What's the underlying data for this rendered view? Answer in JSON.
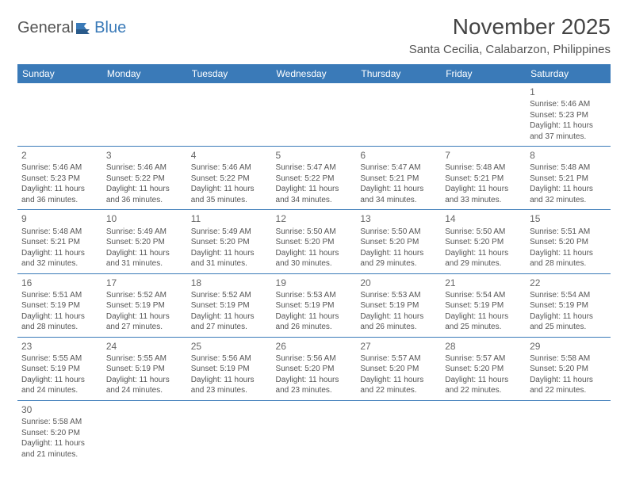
{
  "logo": {
    "text1": "General",
    "text2": "Blue"
  },
  "title": "November 2025",
  "location": "Santa Cecilia, Calabarzon, Philippines",
  "colors": {
    "header_bg": "#3a7ab8",
    "header_text": "#ffffff",
    "border": "#3a7ab8",
    "body_text": "#555555",
    "title_text": "#444444",
    "background": "#ffffff"
  },
  "weekdays": [
    "Sunday",
    "Monday",
    "Tuesday",
    "Wednesday",
    "Thursday",
    "Friday",
    "Saturday"
  ],
  "weeks": [
    [
      null,
      null,
      null,
      null,
      null,
      null,
      {
        "day": "1",
        "sunrise": "Sunrise: 5:46 AM",
        "sunset": "Sunset: 5:23 PM",
        "daylight": "Daylight: 11 hours and 37 minutes."
      }
    ],
    [
      {
        "day": "2",
        "sunrise": "Sunrise: 5:46 AM",
        "sunset": "Sunset: 5:23 PM",
        "daylight": "Daylight: 11 hours and 36 minutes."
      },
      {
        "day": "3",
        "sunrise": "Sunrise: 5:46 AM",
        "sunset": "Sunset: 5:22 PM",
        "daylight": "Daylight: 11 hours and 36 minutes."
      },
      {
        "day": "4",
        "sunrise": "Sunrise: 5:46 AM",
        "sunset": "Sunset: 5:22 PM",
        "daylight": "Daylight: 11 hours and 35 minutes."
      },
      {
        "day": "5",
        "sunrise": "Sunrise: 5:47 AM",
        "sunset": "Sunset: 5:22 PM",
        "daylight": "Daylight: 11 hours and 34 minutes."
      },
      {
        "day": "6",
        "sunrise": "Sunrise: 5:47 AM",
        "sunset": "Sunset: 5:21 PM",
        "daylight": "Daylight: 11 hours and 34 minutes."
      },
      {
        "day": "7",
        "sunrise": "Sunrise: 5:48 AM",
        "sunset": "Sunset: 5:21 PM",
        "daylight": "Daylight: 11 hours and 33 minutes."
      },
      {
        "day": "8",
        "sunrise": "Sunrise: 5:48 AM",
        "sunset": "Sunset: 5:21 PM",
        "daylight": "Daylight: 11 hours and 32 minutes."
      }
    ],
    [
      {
        "day": "9",
        "sunrise": "Sunrise: 5:48 AM",
        "sunset": "Sunset: 5:21 PM",
        "daylight": "Daylight: 11 hours and 32 minutes."
      },
      {
        "day": "10",
        "sunrise": "Sunrise: 5:49 AM",
        "sunset": "Sunset: 5:20 PM",
        "daylight": "Daylight: 11 hours and 31 minutes."
      },
      {
        "day": "11",
        "sunrise": "Sunrise: 5:49 AM",
        "sunset": "Sunset: 5:20 PM",
        "daylight": "Daylight: 11 hours and 31 minutes."
      },
      {
        "day": "12",
        "sunrise": "Sunrise: 5:50 AM",
        "sunset": "Sunset: 5:20 PM",
        "daylight": "Daylight: 11 hours and 30 minutes."
      },
      {
        "day": "13",
        "sunrise": "Sunrise: 5:50 AM",
        "sunset": "Sunset: 5:20 PM",
        "daylight": "Daylight: 11 hours and 29 minutes."
      },
      {
        "day": "14",
        "sunrise": "Sunrise: 5:50 AM",
        "sunset": "Sunset: 5:20 PM",
        "daylight": "Daylight: 11 hours and 29 minutes."
      },
      {
        "day": "15",
        "sunrise": "Sunrise: 5:51 AM",
        "sunset": "Sunset: 5:20 PM",
        "daylight": "Daylight: 11 hours and 28 minutes."
      }
    ],
    [
      {
        "day": "16",
        "sunrise": "Sunrise: 5:51 AM",
        "sunset": "Sunset: 5:19 PM",
        "daylight": "Daylight: 11 hours and 28 minutes."
      },
      {
        "day": "17",
        "sunrise": "Sunrise: 5:52 AM",
        "sunset": "Sunset: 5:19 PM",
        "daylight": "Daylight: 11 hours and 27 minutes."
      },
      {
        "day": "18",
        "sunrise": "Sunrise: 5:52 AM",
        "sunset": "Sunset: 5:19 PM",
        "daylight": "Daylight: 11 hours and 27 minutes."
      },
      {
        "day": "19",
        "sunrise": "Sunrise: 5:53 AM",
        "sunset": "Sunset: 5:19 PM",
        "daylight": "Daylight: 11 hours and 26 minutes."
      },
      {
        "day": "20",
        "sunrise": "Sunrise: 5:53 AM",
        "sunset": "Sunset: 5:19 PM",
        "daylight": "Daylight: 11 hours and 26 minutes."
      },
      {
        "day": "21",
        "sunrise": "Sunrise: 5:54 AM",
        "sunset": "Sunset: 5:19 PM",
        "daylight": "Daylight: 11 hours and 25 minutes."
      },
      {
        "day": "22",
        "sunrise": "Sunrise: 5:54 AM",
        "sunset": "Sunset: 5:19 PM",
        "daylight": "Daylight: 11 hours and 25 minutes."
      }
    ],
    [
      {
        "day": "23",
        "sunrise": "Sunrise: 5:55 AM",
        "sunset": "Sunset: 5:19 PM",
        "daylight": "Daylight: 11 hours and 24 minutes."
      },
      {
        "day": "24",
        "sunrise": "Sunrise: 5:55 AM",
        "sunset": "Sunset: 5:19 PM",
        "daylight": "Daylight: 11 hours and 24 minutes."
      },
      {
        "day": "25",
        "sunrise": "Sunrise: 5:56 AM",
        "sunset": "Sunset: 5:19 PM",
        "daylight": "Daylight: 11 hours and 23 minutes."
      },
      {
        "day": "26",
        "sunrise": "Sunrise: 5:56 AM",
        "sunset": "Sunset: 5:20 PM",
        "daylight": "Daylight: 11 hours and 23 minutes."
      },
      {
        "day": "27",
        "sunrise": "Sunrise: 5:57 AM",
        "sunset": "Sunset: 5:20 PM",
        "daylight": "Daylight: 11 hours and 22 minutes."
      },
      {
        "day": "28",
        "sunrise": "Sunrise: 5:57 AM",
        "sunset": "Sunset: 5:20 PM",
        "daylight": "Daylight: 11 hours and 22 minutes."
      },
      {
        "day": "29",
        "sunrise": "Sunrise: 5:58 AM",
        "sunset": "Sunset: 5:20 PM",
        "daylight": "Daylight: 11 hours and 22 minutes."
      }
    ],
    [
      {
        "day": "30",
        "sunrise": "Sunrise: 5:58 AM",
        "sunset": "Sunset: 5:20 PM",
        "daylight": "Daylight: 11 hours and 21 minutes."
      },
      null,
      null,
      null,
      null,
      null,
      null
    ]
  ]
}
